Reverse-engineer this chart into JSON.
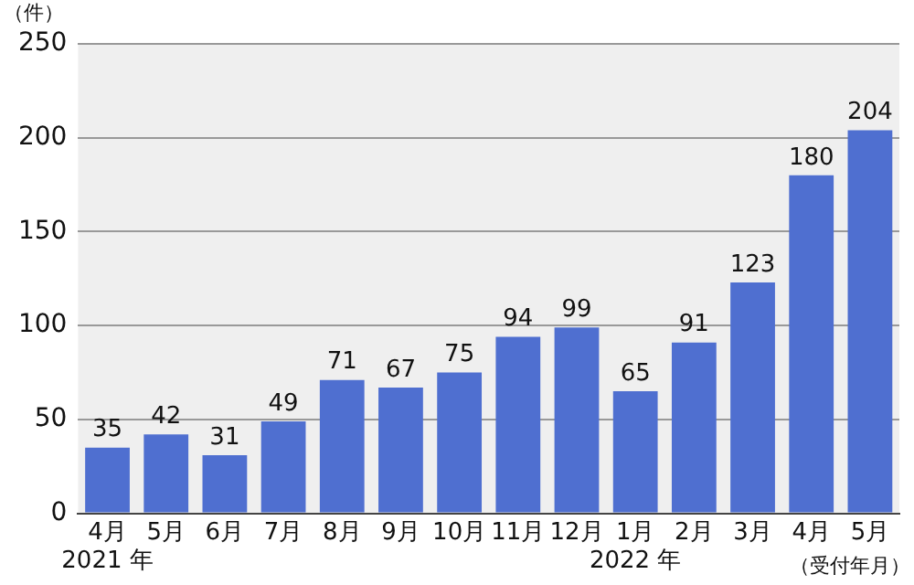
{
  "chart_data": {
    "type": "bar",
    "ylabel": "（件）",
    "xlabel": "（受付年月）",
    "categories": [
      "4月\n2021 年",
      "5月",
      "6月",
      "7月",
      "8月",
      "9月",
      "10月",
      "11月",
      "12月",
      "1月\n2022 年",
      "2月",
      "3月",
      "4月",
      "5月"
    ],
    "values": [
      35,
      42,
      31,
      49,
      71,
      67,
      75,
      94,
      99,
      65,
      91,
      123,
      180,
      204
    ],
    "color": "#4f6fd0",
    "ylim": [
      0,
      250
    ],
    "yticks": [
      0,
      50,
      100,
      150,
      200,
      250
    ],
    "grid": "y",
    "data_labels": true
  }
}
